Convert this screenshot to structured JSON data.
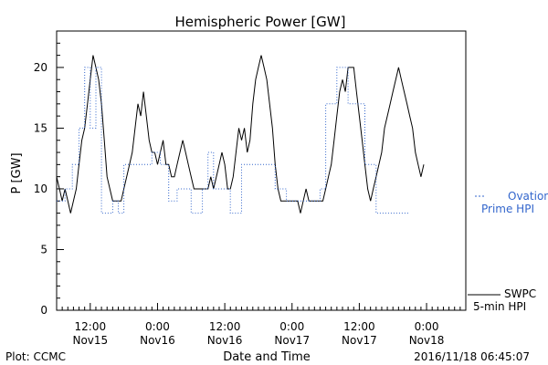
{
  "chart_data": {
    "type": "line",
    "title": "Hemispheric Power [GW]",
    "ylabel": "P [GW]",
    "xlabel": "Date and Time",
    "ylim": [
      0,
      23
    ],
    "yticks": [
      0,
      5,
      10,
      15,
      20
    ],
    "xlim_hours": [
      0,
      73
    ],
    "x_ticks": [
      {
        "hours": 6,
        "line1": "12:00",
        "line2": "Nov15"
      },
      {
        "hours": 18,
        "line1": "0:00",
        "line2": "Nov16"
      },
      {
        "hours": 30,
        "line1": "12:00",
        "line2": "Nov16"
      },
      {
        "hours": 42,
        "line1": "0:00",
        "line2": "Nov17"
      },
      {
        "hours": 54,
        "line1": "12:00",
        "line2": "Nov17"
      },
      {
        "hours": 66,
        "line1": "0:00",
        "line2": "Nov18"
      }
    ],
    "grid": false,
    "series": [
      {
        "name": "SWPC 5-min HPI",
        "color": "#000000",
        "style": "solid",
        "points": [
          [
            0,
            11
          ],
          [
            0.5,
            10
          ],
          [
            1,
            9
          ],
          [
            1.5,
            10
          ],
          [
            2,
            9
          ],
          [
            2.5,
            8
          ],
          [
            3,
            9
          ],
          [
            3.5,
            10
          ],
          [
            4,
            12
          ],
          [
            4.5,
            14
          ],
          [
            5,
            15
          ],
          [
            5.5,
            17
          ],
          [
            6,
            19
          ],
          [
            6.5,
            21
          ],
          [
            7,
            20
          ],
          [
            7.5,
            19
          ],
          [
            8,
            17
          ],
          [
            8.5,
            14
          ],
          [
            9,
            11
          ],
          [
            9.5,
            10
          ],
          [
            10,
            9
          ],
          [
            10.5,
            9
          ],
          [
            11,
            9
          ],
          [
            11.5,
            9
          ],
          [
            12,
            10
          ],
          [
            12.5,
            11
          ],
          [
            13,
            12
          ],
          [
            13.5,
            13
          ],
          [
            14,
            15
          ],
          [
            14.5,
            17
          ],
          [
            15,
            16
          ],
          [
            15.5,
            18
          ],
          [
            16,
            16
          ],
          [
            16.5,
            14
          ],
          [
            17,
            13
          ],
          [
            17.5,
            13
          ],
          [
            18,
            12
          ],
          [
            18.5,
            13
          ],
          [
            19,
            14
          ],
          [
            19.5,
            12
          ],
          [
            20,
            12
          ],
          [
            20.5,
            11
          ],
          [
            21,
            11
          ],
          [
            21.5,
            12
          ],
          [
            22,
            13
          ],
          [
            22.5,
            14
          ],
          [
            23,
            13
          ],
          [
            23.5,
            12
          ],
          [
            24,
            11
          ],
          [
            24.5,
            10
          ],
          [
            25,
            10
          ],
          [
            25.5,
            10
          ],
          [
            26,
            10
          ],
          [
            26.5,
            10
          ],
          [
            27,
            10
          ],
          [
            27.5,
            11
          ],
          [
            28,
            10
          ],
          [
            28.5,
            11
          ],
          [
            29,
            12
          ],
          [
            29.5,
            13
          ],
          [
            30,
            12
          ],
          [
            30.5,
            10
          ],
          [
            31,
            10
          ],
          [
            31.5,
            11
          ],
          [
            32,
            13
          ],
          [
            32.5,
            15
          ],
          [
            33,
            14
          ],
          [
            33.5,
            15
          ],
          [
            34,
            13
          ],
          [
            34.5,
            14
          ],
          [
            35,
            17
          ],
          [
            35.5,
            19
          ],
          [
            36,
            20
          ],
          [
            36.5,
            21
          ],
          [
            37,
            20
          ],
          [
            37.5,
            19
          ],
          [
            38,
            17
          ],
          [
            38.5,
            15
          ],
          [
            39,
            12
          ],
          [
            39.5,
            10
          ],
          [
            40,
            9
          ],
          [
            40.5,
            9
          ],
          [
            41,
            9
          ],
          [
            41.5,
            9
          ],
          [
            42,
            9
          ],
          [
            42.5,
            9
          ],
          [
            43,
            9
          ],
          [
            43.5,
            8
          ],
          [
            44,
            9
          ],
          [
            44.5,
            10
          ],
          [
            45,
            9
          ],
          [
            45.5,
            9
          ],
          [
            46,
            9
          ],
          [
            46.5,
            9
          ],
          [
            47,
            9
          ],
          [
            47.5,
            9
          ],
          [
            48,
            10
          ],
          [
            48.5,
            11
          ],
          [
            49,
            12
          ],
          [
            49.5,
            14
          ],
          [
            50,
            16
          ],
          [
            50.5,
            18
          ],
          [
            51,
            19
          ],
          [
            51.5,
            18
          ],
          [
            52,
            20
          ],
          [
            52.5,
            20
          ],
          [
            53,
            20
          ],
          [
            53.5,
            18
          ],
          [
            54,
            16
          ],
          [
            54.5,
            14
          ],
          [
            55,
            12
          ],
          [
            55.5,
            10
          ],
          [
            56,
            9
          ],
          [
            56.5,
            10
          ],
          [
            57,
            11
          ],
          [
            57.5,
            12
          ],
          [
            58,
            13
          ],
          [
            58.5,
            15
          ],
          [
            59,
            16
          ],
          [
            59.5,
            17
          ],
          [
            60,
            18
          ],
          [
            60.5,
            19
          ],
          [
            61,
            20
          ],
          [
            61.5,
            19
          ],
          [
            62,
            18
          ],
          [
            62.5,
            17
          ],
          [
            63,
            16
          ],
          [
            63.5,
            15
          ],
          [
            64,
            13
          ],
          [
            64.5,
            12
          ],
          [
            65,
            11
          ],
          [
            65.5,
            12
          ]
        ]
      },
      {
        "name": "Ovation Prime HPI",
        "color": "#3366cc",
        "style": "dotted",
        "points": [
          [
            0,
            9
          ],
          [
            1.5,
            9
          ],
          [
            1.5,
            10
          ],
          [
            2.8,
            10
          ],
          [
            2.8,
            12
          ],
          [
            4,
            12
          ],
          [
            4,
            15
          ],
          [
            5,
            15
          ],
          [
            5,
            20
          ],
          [
            6,
            20
          ],
          [
            6,
            15
          ],
          [
            7,
            15
          ],
          [
            7,
            20
          ],
          [
            8,
            20
          ],
          [
            8,
            8
          ],
          [
            10,
            8
          ],
          [
            10,
            9
          ],
          [
            11,
            9
          ],
          [
            11,
            8
          ],
          [
            12,
            8
          ],
          [
            12,
            12
          ],
          [
            17,
            12
          ],
          [
            17,
            13
          ],
          [
            18.5,
            13
          ],
          [
            18.5,
            12
          ],
          [
            20,
            12
          ],
          [
            20,
            9
          ],
          [
            21.5,
            9
          ],
          [
            21.5,
            10
          ],
          [
            24,
            10
          ],
          [
            24,
            8
          ],
          [
            26,
            8
          ],
          [
            26,
            10
          ],
          [
            27,
            10
          ],
          [
            27,
            13
          ],
          [
            28,
            13
          ],
          [
            28,
            10
          ],
          [
            31,
            10
          ],
          [
            31,
            8
          ],
          [
            33,
            8
          ],
          [
            33,
            12
          ],
          [
            39,
            12
          ],
          [
            39,
            10
          ],
          [
            41,
            10
          ],
          [
            41,
            9
          ],
          [
            47,
            9
          ],
          [
            47,
            10
          ],
          [
            48,
            10
          ],
          [
            48,
            17
          ],
          [
            50,
            17
          ],
          [
            50,
            20
          ],
          [
            52,
            20
          ],
          [
            52,
            17
          ],
          [
            55,
            17
          ],
          [
            55,
            12
          ],
          [
            57,
            12
          ],
          [
            57,
            8
          ],
          [
            63,
            8
          ]
        ]
      }
    ]
  },
  "legend": {
    "ovation_line1": "Ovation",
    "ovation_line2": "Prime HPI",
    "swpc_line1": "SWPC",
    "swpc_line2": "5-min HPI"
  },
  "footer": {
    "plot_credit": "Plot: CCMC",
    "timestamp": "2016/11/18 06:45:07"
  }
}
